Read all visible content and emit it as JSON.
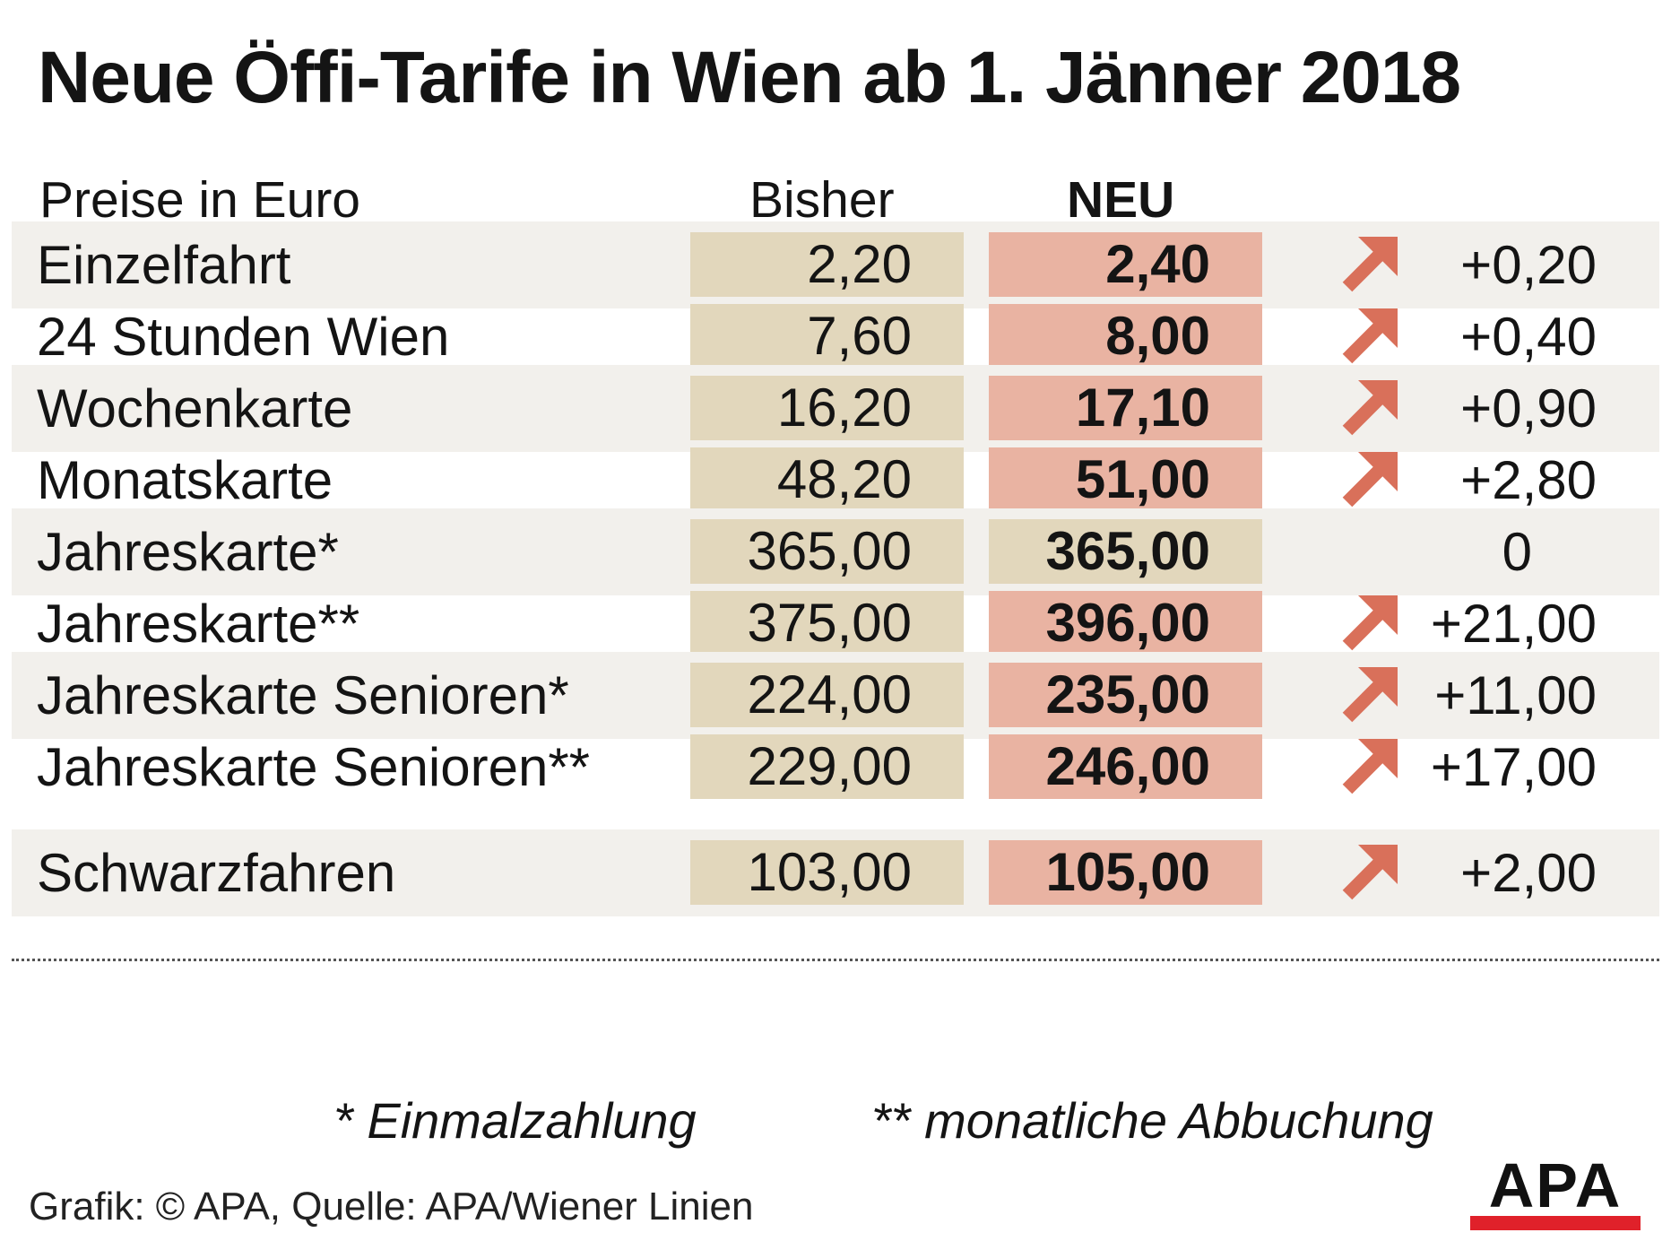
{
  "title": "Neue Öffi-Tarife in Wien ab 1. Jänner 2018",
  "columns": {
    "label": "Preise in Euro",
    "old": "Bisher",
    "new": "NEU"
  },
  "colors": {
    "old_cell": "#e2d7bc",
    "new_cell_increase": "#e9b3a2",
    "new_cell_same": "#e2d7bc",
    "arrow": "#d9705a",
    "row_shade": "#f2f0ec",
    "logo_bar": "#e0212a"
  },
  "icons": {
    "increase": "arrow-up-right-icon"
  },
  "chart_data": {
    "type": "table",
    "categories": [
      "Einzelfahrt",
      "24 Stunden Wien",
      "Wochenkarte",
      "Monatskarte",
      "Jahreskarte*",
      "Jahreskarte**",
      "Jahreskarte Senioren*",
      "Jahreskarte Senioren**",
      "Schwarzfahren"
    ],
    "series": [
      {
        "name": "Bisher",
        "values": [
          2.2,
          7.6,
          16.2,
          48.2,
          365.0,
          375.0,
          224.0,
          229.0,
          103.0
        ],
        "labels": [
          "2,20",
          "7,60",
          "16,20",
          "48,20",
          "365,00",
          "375,00",
          "224,00",
          "229,00",
          "103,00"
        ]
      },
      {
        "name": "NEU",
        "values": [
          2.4,
          8.0,
          17.1,
          51.0,
          365.0,
          396.0,
          235.0,
          246.0,
          105.0
        ],
        "labels": [
          "2,40",
          "8,00",
          "17,10",
          "51,00",
          "365,00",
          "396,00",
          "235,00",
          "246,00",
          "105,00"
        ]
      }
    ],
    "changes": [
      0.2,
      0.4,
      0.9,
      2.8,
      0,
      21.0,
      11.0,
      17.0,
      2.0
    ],
    "change_labels": [
      "+0,20",
      "+0,40",
      "+0,90",
      "+2,80",
      "0",
      "+21,00",
      "+11,00",
      "+17,00",
      "+2,00"
    ],
    "unit": "Euro"
  },
  "footnotes": {
    "single": "* Einmalzahlung",
    "double": "** monatliche Abbuchung"
  },
  "credit": "Grafik: © APA, Quelle: APA/Wiener Linien",
  "logo": "APA"
}
